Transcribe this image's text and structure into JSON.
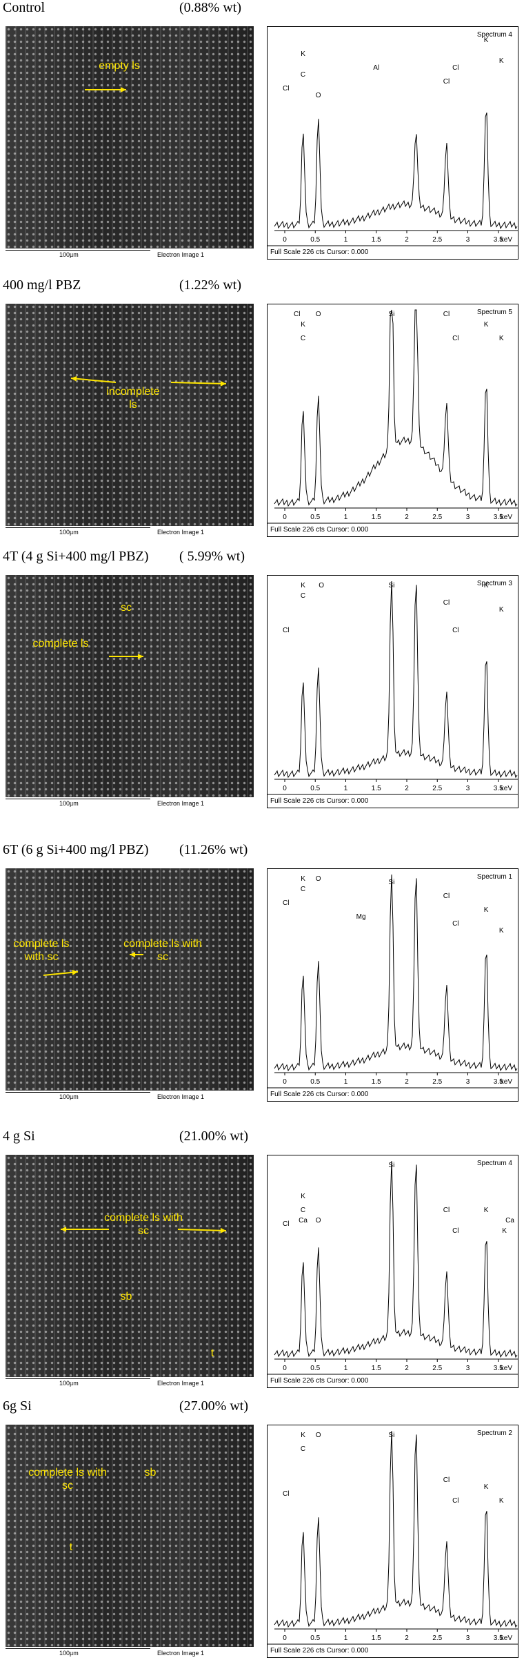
{
  "panels": [
    {
      "label": "Control",
      "wt": "(0.88% wt)",
      "annotations": [
        "empty ls"
      ],
      "scale": "100µm",
      "caption": "Electron Image 1",
      "spectrum": {
        "title": "Spectrum 4",
        "peaks": [
          "Cl",
          "K",
          "C",
          "O",
          "Al",
          "Cl",
          "Cl",
          "K",
          "K"
        ]
      }
    },
    {
      "label": "400 mg/l PBZ",
      "wt": "(1.22% wt)",
      "annotations": [
        "incomplete ls"
      ],
      "scale": "100µm",
      "caption": "Electron Image 1",
      "spectrum": {
        "title": "Spectrum 5",
        "peaks": [
          "Cl",
          "K",
          "C",
          "O",
          "Si",
          "Cl",
          "Cl",
          "K",
          "K"
        ]
      }
    },
    {
      "label": "4T (4 g Si+400 mg/l PBZ)",
      "wt": "( 5.99% wt)",
      "annotations": [
        "complete ls",
        "sc"
      ],
      "scale": "100µm",
      "caption": "Electron Image 1",
      "spectrum": {
        "title": "Spectrum 3",
        "peaks": [
          "Cl",
          "K",
          "C",
          "O",
          "Si",
          "Cl",
          "Cl",
          "K",
          "K"
        ]
      }
    },
    {
      "label": "6T  (6 g Si+400 mg/l PBZ)",
      "wt": "(11.26% wt)",
      "annotations": [
        "complete ls with sc",
        "complete ls with sc"
      ],
      "scale": "100µm",
      "caption": "Electron Image 1",
      "spectrum": {
        "title": "Spectrum 1",
        "peaks": [
          "Cl",
          "K",
          "C",
          "O",
          "Mg",
          "Si",
          "Cl",
          "Cl",
          "K",
          "K"
        ]
      }
    },
    {
      "label": "4 g Si",
      "wt": "(21.00% wt)",
      "annotations": [
        "complete ls with sc",
        "sb",
        "t"
      ],
      "scale": "100µm",
      "caption": "Electron Image 1",
      "spectrum": {
        "title": "Spectrum 4",
        "peaks": [
          "Cl",
          "K",
          "C",
          "Ca",
          "O",
          "Si",
          "Cl",
          "Cl",
          "K",
          "Ca",
          "K"
        ]
      }
    },
    {
      "label": "6g Si",
      "wt": "(27.00% wt)",
      "annotations": [
        "complete ls with sc",
        "sb",
        "t"
      ],
      "scale": "100µm",
      "caption": "Electron Image 1",
      "spectrum": {
        "title": "Spectrum 2",
        "peaks": [
          "Cl",
          "K",
          "C",
          "O",
          "Si",
          "Cl",
          "Cl",
          "K",
          "K"
        ]
      }
    }
  ],
  "spectrum_axis": {
    "ticks": [
      0,
      0.5,
      1,
      1.5,
      2,
      2.5,
      3,
      3.5
    ],
    "unit": "keV",
    "footer": "Full Scale 226 cts Cursor: 0.000"
  }
}
